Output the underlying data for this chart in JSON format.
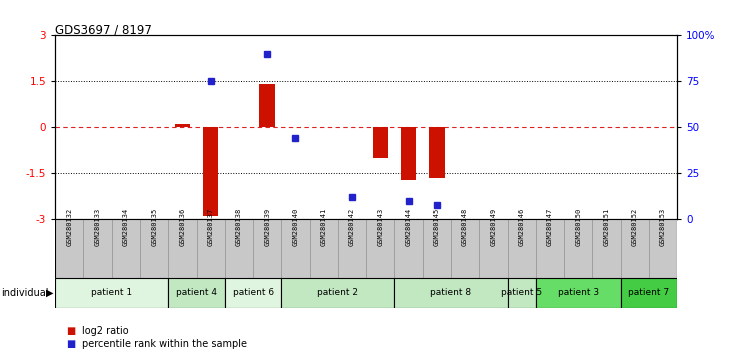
{
  "title": "GDS3697 / 8197",
  "samples": [
    "GSM280132",
    "GSM280133",
    "GSM280134",
    "GSM280135",
    "GSM280136",
    "GSM280137",
    "GSM280138",
    "GSM280139",
    "GSM280140",
    "GSM280141",
    "GSM280142",
    "GSM280143",
    "GSM280144",
    "GSM280145",
    "GSM280148",
    "GSM280149",
    "GSM280146",
    "GSM280147",
    "GSM280150",
    "GSM280151",
    "GSM280152",
    "GSM280153"
  ],
  "log2_ratio": [
    0,
    0,
    0,
    0,
    0.1,
    -2.9,
    0,
    1.4,
    0,
    0,
    0,
    -1.0,
    -1.7,
    -1.65,
    0,
    0,
    0,
    0,
    0,
    0,
    0,
    0
  ],
  "percentile": [
    null,
    null,
    null,
    null,
    null,
    75,
    null,
    90,
    44,
    null,
    12,
    null,
    10,
    8,
    null,
    null,
    null,
    null,
    null,
    null,
    null,
    null
  ],
  "patients": [
    {
      "label": "patient 1",
      "start": 0,
      "end": 4,
      "color": "#dff5df"
    },
    {
      "label": "patient 4",
      "start": 4,
      "end": 6,
      "color": "#c2e8c2"
    },
    {
      "label": "patient 6",
      "start": 6,
      "end": 8,
      "color": "#dff5df"
    },
    {
      "label": "patient 2",
      "start": 8,
      "end": 12,
      "color": "#c2e8c2"
    },
    {
      "label": "patient 8",
      "start": 12,
      "end": 16,
      "color": "#c2e8c2"
    },
    {
      "label": "patient 5",
      "start": 16,
      "end": 17,
      "color": "#c2e8c2"
    },
    {
      "label": "patient 3",
      "start": 17,
      "end": 20,
      "color": "#66dd66"
    },
    {
      "label": "patient 7",
      "start": 20,
      "end": 22,
      "color": "#44cc44"
    }
  ],
  "ylim_left": [
    -3,
    3
  ],
  "ylim_right": [
    0,
    100
  ],
  "yticks_left": [
    -3,
    -1.5,
    0,
    1.5,
    3
  ],
  "yticks_right": [
    0,
    25,
    50,
    75,
    100
  ],
  "yticklabels_right": [
    "0",
    "25",
    "50",
    "75",
    "100%"
  ],
  "bar_color": "#cc1100",
  "dot_color": "#2222cc",
  "hline_color": "#dd2222",
  "bg_color": "#ffffff",
  "sample_bg": "#c8c8c8"
}
